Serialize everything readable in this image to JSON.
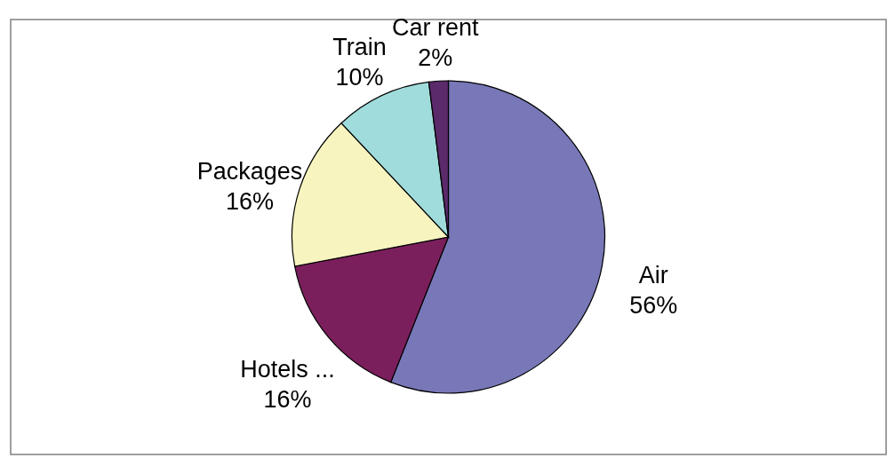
{
  "chart_data": {
    "type": "pie",
    "categories": [
      "Air",
      "Hotels ...",
      "Packages",
      "Train",
      "Car rent"
    ],
    "values": [
      56,
      16,
      16,
      10,
      2
    ],
    "colors": [
      "#7878b8",
      "#7b1f5c",
      "#f8f4c0",
      "#a0dcdc",
      "#5a2a6a"
    ],
    "value_labels": [
      "56%",
      "16%",
      "16%",
      "10%",
      "2%"
    ],
    "legend": false
  }
}
